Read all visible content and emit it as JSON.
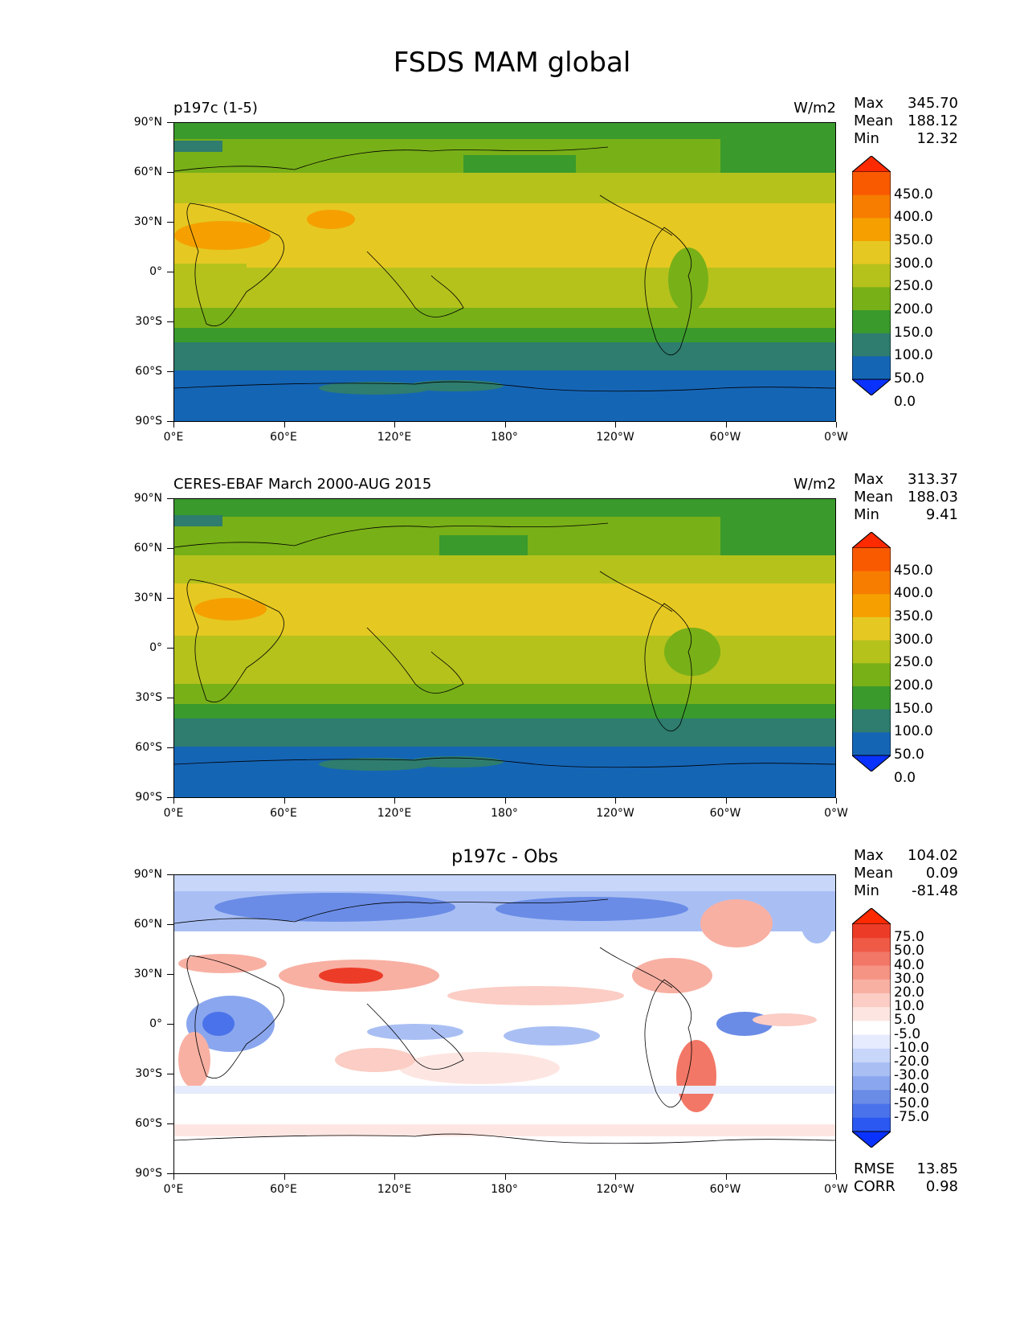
{
  "figure": {
    "title": "FSDS MAM global"
  },
  "axes": {
    "y_ticks": [
      "90°N",
      "60°N",
      "30°N",
      "0°",
      "30°S",
      "60°S",
      "90°S"
    ],
    "x_ticks": [
      "0°E",
      "60°E",
      "120°E",
      "180°",
      "120°W",
      "60°W",
      "0°W"
    ]
  },
  "panels": [
    {
      "title_left": "p197c (1-5)",
      "units": "W/m2",
      "stats": [
        {
          "label": "Max",
          "value": "345.70"
        },
        {
          "label": "Mean",
          "value": "188.12"
        },
        {
          "label": "Min",
          "value": "12.32"
        }
      ],
      "colorbar": {
        "labels": [
          "450.0",
          "400.0",
          "350.0",
          "300.0",
          "250.0",
          "200.0",
          "150.0",
          "100.0",
          "50.0",
          "0.0"
        ],
        "colors": [
          "#0a32ff",
          "#1565b5",
          "#2e7d6e",
          "#3a9a2c",
          "#78b018",
          "#b5c21c",
          "#e6c822",
          "#f5a000",
          "#f77d00",
          "#f95a00",
          "#ff2a00"
        ]
      }
    },
    {
      "title_left": "CERES-EBAF March 2000-AUG 2015",
      "units": "W/m2",
      "stats": [
        {
          "label": "Max",
          "value": "313.37"
        },
        {
          "label": "Mean",
          "value": "188.03"
        },
        {
          "label": "Min",
          "value": "9.41"
        }
      ],
      "colorbar": {
        "labels": [
          "450.0",
          "400.0",
          "350.0",
          "300.0",
          "250.0",
          "200.0",
          "150.0",
          "100.0",
          "50.0",
          "0.0"
        ],
        "colors": [
          "#0a32ff",
          "#1565b5",
          "#2e7d6e",
          "#3a9a2c",
          "#78b018",
          "#b5c21c",
          "#e6c822",
          "#f5a000",
          "#f77d00",
          "#f95a00",
          "#ff2a00"
        ]
      }
    },
    {
      "title_center": "p197c - Obs",
      "stats": [
        {
          "label": "Max",
          "value": "104.02"
        },
        {
          "label": "Mean",
          "value": "0.09"
        },
        {
          "label": "Min",
          "value": "-81.48"
        }
      ],
      "extra_stats": [
        {
          "label": "RMSE",
          "value": "13.85"
        },
        {
          "label": "CORR",
          "value": "0.98"
        }
      ],
      "colorbar": {
        "labels": [
          "75.0",
          "50.0",
          "40.0",
          "30.0",
          "20.0",
          "10.0",
          "5.0",
          "-5.0",
          "-10.0",
          "-20.0",
          "-30.0",
          "-40.0",
          "-50.0",
          "-75.0"
        ],
        "colors": [
          "#0a32ff",
          "#2a58f0",
          "#4a72ea",
          "#6a8ce6",
          "#8aa6ee",
          "#a9bff4",
          "#c8d6fa",
          "#e6ecfd",
          "#ffffff",
          "#fde6e2",
          "#fbcdc4",
          "#f8b0a3",
          "#f59484",
          "#f27766",
          "#ef5a46",
          "#ec3c28",
          "#ff2a00"
        ]
      }
    }
  ]
}
